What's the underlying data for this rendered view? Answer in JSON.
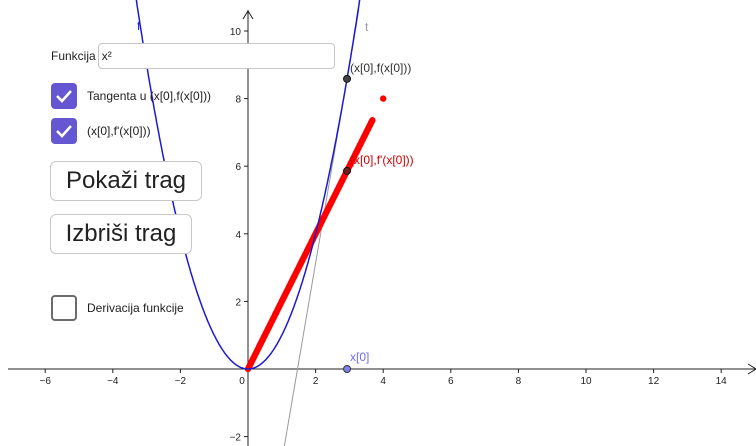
{
  "input": {
    "label": "Funkcija",
    "value": "x²"
  },
  "checkboxes": [
    {
      "label": "Tangenta u (x[0],f(x[0]))",
      "checked": true
    },
    {
      "label": "(x[0],f'(x[0]))",
      "checked": true
    },
    {
      "label": "Derivacija funkcije",
      "checked": false
    }
  ],
  "buttons": {
    "show_trace": "Pokaži trag",
    "clear_trace": "Izbriši trag"
  },
  "graph": {
    "x_ticks": [
      -6,
      -4,
      -2,
      0,
      2,
      4,
      6,
      8,
      10,
      12,
      14
    ],
    "y_ticks": [
      -2,
      2,
      4,
      6,
      8,
      10
    ],
    "x0": 2.93,
    "curve_label_f": "f",
    "curve_label_t": "t",
    "point_f_label": "(x[0],f(x[0]))",
    "point_fprime_label": "(x[0],f'(x[0]))",
    "point_x0_label": "x[0]",
    "trace_x_max": 3.7,
    "trace_extra_point": [
      4,
      8
    ]
  },
  "colors": {
    "parabola": "#1c1ad0",
    "tangent": "#9a9a9a",
    "trace": "#ff0000",
    "point_fprime_label": "#cc0000",
    "point_x0": "#6e6ee6",
    "checkbox": "#6557d2"
  }
}
